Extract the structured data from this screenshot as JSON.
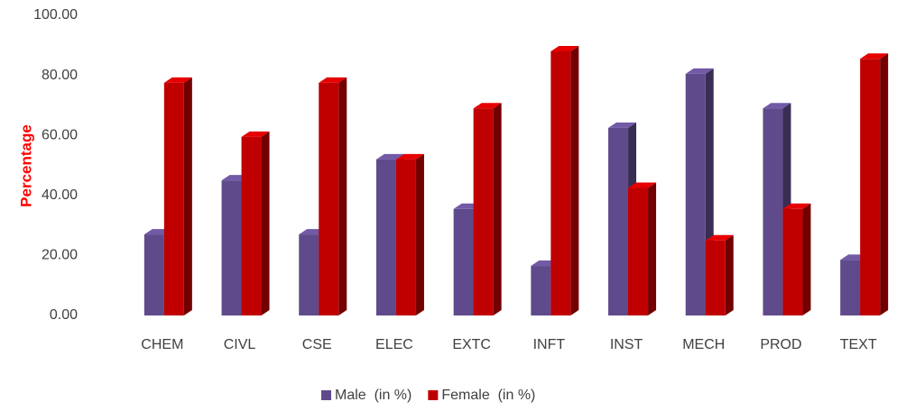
{
  "chart_data": {
    "type": "bar3d",
    "y_label": "Percentage",
    "categories": [
      "CHEM",
      "CIVL",
      "CSE",
      "ELEC",
      "EXTC",
      "INFT",
      "INST",
      "MECH",
      "PROD",
      "TEXT"
    ],
    "series": [
      {
        "name": "Male  (in %)",
        "color": "#5f4b8b",
        "values": [
          27,
          45,
          27,
          52,
          35.5,
          16.5,
          62.5,
          80.5,
          69,
          18.5
        ]
      },
      {
        "name": "Female  (in %)",
        "color": "#c00000",
        "values": [
          77.5,
          59.5,
          77.5,
          52,
          69,
          88,
          42.5,
          25,
          35.5,
          85.5
        ]
      }
    ],
    "ylim": [
      0,
      100
    ],
    "yticks": [
      {
        "value": 0,
        "label": "0.00"
      },
      {
        "value": 20,
        "label": "20.00"
      },
      {
        "value": 40,
        "label": "40.00"
      },
      {
        "value": 60,
        "label": "60.00"
      },
      {
        "value": 80,
        "label": "80.00"
      },
      {
        "value": 100,
        "label": "100.00"
      }
    ],
    "legend": "bottom"
  }
}
